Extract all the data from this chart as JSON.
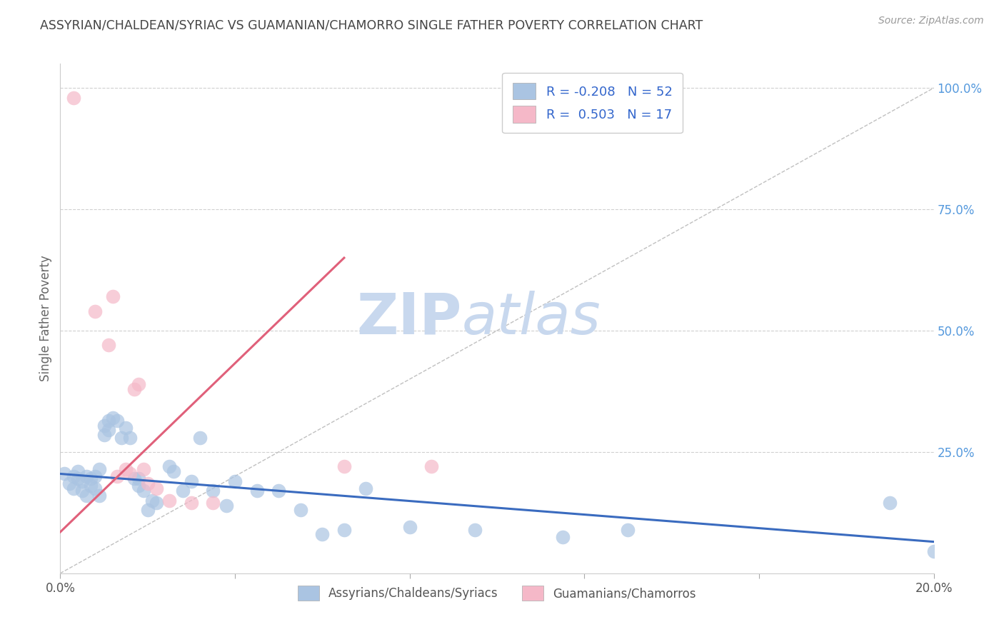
{
  "title": "ASSYRIAN/CHALDEAN/SYRIAC VS GUAMANIAN/CHAMORRO SINGLE FATHER POVERTY CORRELATION CHART",
  "source": "Source: ZipAtlas.com",
  "ylabel": "Single Father Poverty",
  "right_yticks": [
    "100.0%",
    "75.0%",
    "50.0%",
    "25.0%"
  ],
  "right_ytick_vals": [
    1.0,
    0.75,
    0.5,
    0.25
  ],
  "legend_blue_r": "-0.208",
  "legend_blue_n": "52",
  "legend_pink_r": "0.503",
  "legend_pink_n": "17",
  "blue_color": "#aac4e2",
  "pink_color": "#f5b8c8",
  "blue_line_color": "#3a6bbf",
  "pink_line_color": "#e0607a",
  "diagonal_color": "#c0c0c0",
  "grid_color": "#d0d0d0",
  "watermark_zip_color": "#c8d8ee",
  "watermark_atlas_color": "#c8d8ee",
  "title_color": "#444444",
  "right_tick_color": "#5599dd",
  "blue_scatter": [
    [
      0.001,
      0.205
    ],
    [
      0.002,
      0.185
    ],
    [
      0.003,
      0.175
    ],
    [
      0.003,
      0.2
    ],
    [
      0.004,
      0.195
    ],
    [
      0.004,
      0.21
    ],
    [
      0.005,
      0.17
    ],
    [
      0.005,
      0.19
    ],
    [
      0.006,
      0.16
    ],
    [
      0.006,
      0.2
    ],
    [
      0.007,
      0.195
    ],
    [
      0.007,
      0.18
    ],
    [
      0.008,
      0.2
    ],
    [
      0.008,
      0.175
    ],
    [
      0.009,
      0.215
    ],
    [
      0.009,
      0.16
    ],
    [
      0.01,
      0.305
    ],
    [
      0.01,
      0.285
    ],
    [
      0.011,
      0.315
    ],
    [
      0.011,
      0.295
    ],
    [
      0.012,
      0.32
    ],
    [
      0.013,
      0.315
    ],
    [
      0.014,
      0.28
    ],
    [
      0.015,
      0.3
    ],
    [
      0.016,
      0.28
    ],
    [
      0.017,
      0.195
    ],
    [
      0.018,
      0.18
    ],
    [
      0.018,
      0.195
    ],
    [
      0.019,
      0.17
    ],
    [
      0.02,
      0.13
    ],
    [
      0.021,
      0.15
    ],
    [
      0.022,
      0.145
    ],
    [
      0.025,
      0.22
    ],
    [
      0.026,
      0.21
    ],
    [
      0.028,
      0.17
    ],
    [
      0.03,
      0.19
    ],
    [
      0.032,
      0.28
    ],
    [
      0.035,
      0.17
    ],
    [
      0.038,
      0.14
    ],
    [
      0.04,
      0.19
    ],
    [
      0.045,
      0.17
    ],
    [
      0.05,
      0.17
    ],
    [
      0.055,
      0.13
    ],
    [
      0.06,
      0.08
    ],
    [
      0.065,
      0.09
    ],
    [
      0.07,
      0.175
    ],
    [
      0.08,
      0.095
    ],
    [
      0.095,
      0.09
    ],
    [
      0.115,
      0.075
    ],
    [
      0.13,
      0.09
    ],
    [
      0.19,
      0.145
    ],
    [
      0.2,
      0.045
    ]
  ],
  "pink_scatter": [
    [
      0.003,
      0.98
    ],
    [
      0.008,
      0.54
    ],
    [
      0.011,
      0.47
    ],
    [
      0.012,
      0.57
    ],
    [
      0.013,
      0.2
    ],
    [
      0.015,
      0.215
    ],
    [
      0.016,
      0.205
    ],
    [
      0.017,
      0.38
    ],
    [
      0.018,
      0.39
    ],
    [
      0.019,
      0.215
    ],
    [
      0.02,
      0.185
    ],
    [
      0.022,
      0.175
    ],
    [
      0.025,
      0.15
    ],
    [
      0.03,
      0.145
    ],
    [
      0.035,
      0.145
    ],
    [
      0.065,
      0.22
    ],
    [
      0.085,
      0.22
    ]
  ],
  "blue_line_x": [
    0.0,
    0.2
  ],
  "blue_line_y": [
    0.205,
    0.065
  ],
  "pink_line_x": [
    0.0,
    0.065
  ],
  "pink_line_y": [
    0.085,
    0.65
  ],
  "diag_line_x": [
    0.0,
    0.2
  ],
  "diag_line_y": [
    0.0,
    1.0
  ],
  "xlim": [
    0.0,
    0.2
  ],
  "ylim": [
    0.0,
    1.05
  ],
  "legend_labels": [
    "Assyrians/Chaldeans/Syriacs",
    "Guamanians/Chamorros"
  ],
  "background_color": "#ffffff",
  "xtick_positions": [
    0.0,
    0.04,
    0.08,
    0.12,
    0.16,
    0.2
  ],
  "xtick_show": [
    true,
    false,
    false,
    false,
    false,
    true
  ]
}
